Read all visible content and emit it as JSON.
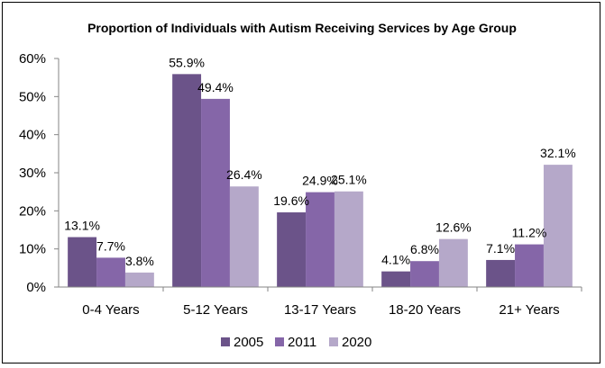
{
  "chart_data": {
    "type": "bar",
    "title": "Proportion of Individuals with Autism Receiving Services by Age Group",
    "categories": [
      "0-4 Years",
      "5-12 Years",
      "13-17 Years",
      "18-20 Years",
      "21+ Years"
    ],
    "series": [
      {
        "name": "2005",
        "color": "#6b5389",
        "values": [
          13.1,
          55.9,
          19.6,
          4.1,
          7.1
        ],
        "labels": [
          "13.1%",
          "55.9%",
          "19.6%",
          "4.1%",
          "7.1%"
        ]
      },
      {
        "name": "2011",
        "color": "#8566a8",
        "values": [
          7.7,
          49.4,
          24.9,
          6.8,
          11.2
        ],
        "labels": [
          "7.7%",
          "49.4%",
          "24.9%",
          "6.8%",
          "11.2%"
        ]
      },
      {
        "name": "2020",
        "color": "#b5a8c9",
        "values": [
          3.8,
          26.4,
          25.1,
          12.6,
          32.1
        ],
        "labels": [
          "3.8%",
          "26.4%",
          "25.1%",
          "12.6%",
          "32.1%"
        ]
      }
    ],
    "ylim": [
      0,
      60
    ],
    "yticks": [
      "0%",
      "10%",
      "20%",
      "30%",
      "40%",
      "50%",
      "60%"
    ],
    "grid": false,
    "legend_position": "bottom",
    "xlabel": "",
    "ylabel": ""
  }
}
